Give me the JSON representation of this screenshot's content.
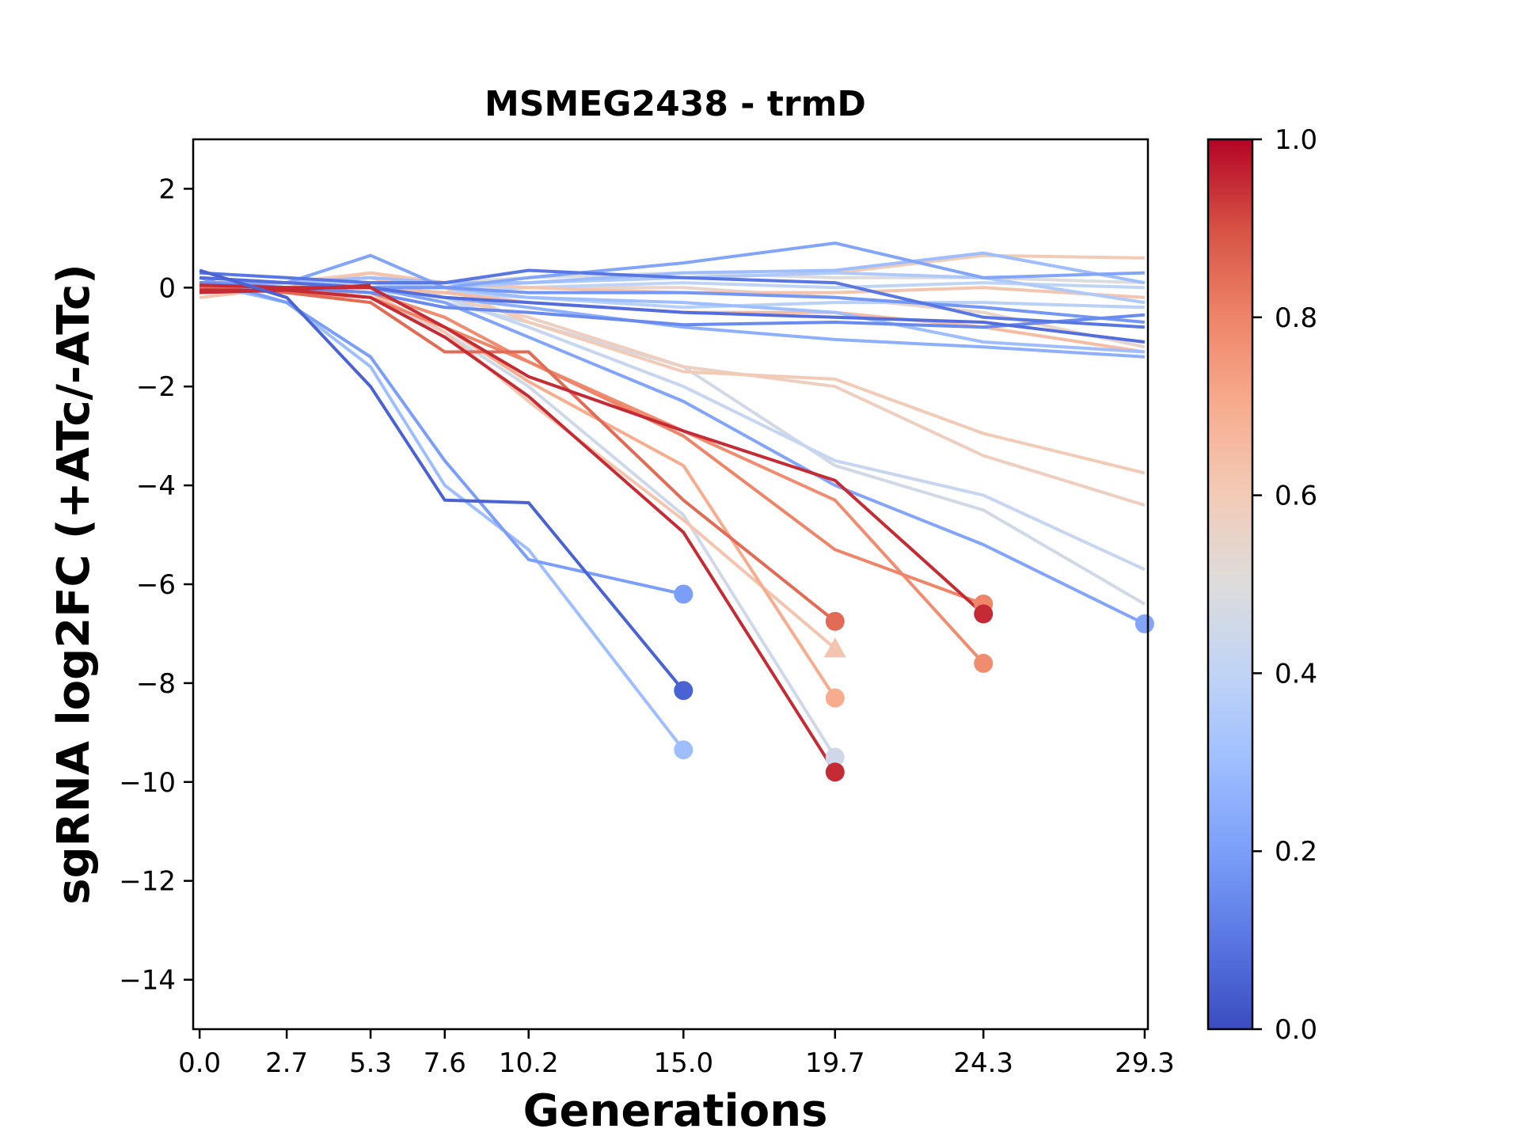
{
  "chart_data": {
    "type": "line",
    "title": "MSMEG2438 - trmD",
    "xlabel": "Generations",
    "ylabel": "sgRNA log2FC (+ATc/-ATc)",
    "x_ticks": [
      "0.0",
      "2.7",
      "5.3",
      "7.6",
      "10.2",
      "15.0",
      "19.7",
      "24.3",
      "29.3"
    ],
    "y_ticks": [
      "2",
      "0",
      "−2",
      "−4",
      "−6",
      "−8",
      "−10",
      "−12",
      "−14"
    ],
    "xlim": [
      -0.2,
      29.4
    ],
    "ylim": [
      -15,
      3
    ],
    "colorbar": {
      "ticks": [
        "0.0",
        "0.2",
        "0.4",
        "0.6",
        "0.8",
        "1.0"
      ],
      "range": [
        0,
        1
      ],
      "colormap": "coolwarm",
      "stops": [
        "#3b4cc0",
        "#5977e3",
        "#7b9ff9",
        "#9ebeff",
        "#c0d4f5",
        "#dddcdc",
        "#f2cbb7",
        "#f7ac8e",
        "#ee8468",
        "#d65244",
        "#b40426"
      ]
    },
    "series": [
      {
        "c": 0.05,
        "x": [
          0,
          2.7,
          5.3,
          7.6,
          10.2,
          15.0
        ],
        "y": [
          0.35,
          -0.2,
          -2.0,
          -4.3,
          -4.35,
          -8.15
        ],
        "end": "circle"
      },
      {
        "c": 0.2,
        "x": [
          0,
          2.7,
          5.3,
          7.6,
          10.2,
          15.0
        ],
        "y": [
          0.2,
          -0.3,
          -1.4,
          -3.5,
          -5.5,
          -6.2
        ],
        "end": "circle"
      },
      {
        "c": 0.3,
        "x": [
          0,
          2.7,
          5.3,
          7.6,
          10.2,
          15.0
        ],
        "y": [
          0.1,
          -0.3,
          -1.6,
          -4.0,
          -5.3,
          -9.35
        ],
        "end": "circle"
      },
      {
        "c": 0.95,
        "x": [
          0,
          2.7,
          5.3,
          7.6,
          10.2,
          15.0,
          19.7
        ],
        "y": [
          -0.05,
          -0.05,
          -0.2,
          -1.0,
          -2.2,
          -4.95,
          -9.8
        ],
        "end": "circle"
      },
      {
        "c": 0.45,
        "x": [
          0,
          2.7,
          5.3,
          7.6,
          10.2,
          15.0,
          19.7
        ],
        "y": [
          0.0,
          -0.1,
          -0.2,
          -0.9,
          -2.0,
          -4.6,
          -9.5
        ],
        "end": "circle"
      },
      {
        "c": 0.7,
        "x": [
          0,
          2.7,
          5.3,
          7.6,
          10.2,
          15.0,
          19.7
        ],
        "y": [
          0.1,
          -0.1,
          -0.2,
          -0.8,
          -1.9,
          -3.6,
          -8.3
        ],
        "end": "circle"
      },
      {
        "c": 0.85,
        "x": [
          0,
          2.7,
          5.3,
          7.6,
          10.2,
          15.0,
          19.7
        ],
        "y": [
          0.0,
          -0.1,
          -0.3,
          -1.3,
          -1.3,
          -4.3,
          -6.75
        ],
        "end": "circle"
      },
      {
        "c": 0.62,
        "x": [
          0,
          2.7,
          5.3,
          7.6,
          10.2,
          15.0,
          19.7
        ],
        "y": [
          0.1,
          0.0,
          -0.1,
          -0.9,
          -2.3,
          -4.7,
          -7.3
        ],
        "end": "triangle"
      },
      {
        "c": 0.95,
        "x": [
          0,
          2.7,
          5.3,
          7.6,
          10.2,
          15.0,
          19.7,
          24.3
        ],
        "y": [
          0.05,
          0.0,
          0.0,
          -0.8,
          -1.8,
          -2.9,
          -3.9,
          -6.6
        ],
        "end": "circle"
      },
      {
        "c": 0.8,
        "x": [
          0,
          2.7,
          5.3,
          7.6,
          10.2,
          15.0,
          19.7,
          24.3
        ],
        "y": [
          0.1,
          0.0,
          -0.2,
          -0.8,
          -1.5,
          -3.0,
          -5.3,
          -6.4
        ],
        "end": "circle"
      },
      {
        "c": 0.78,
        "x": [
          0,
          2.7,
          5.3,
          7.6,
          10.2,
          15.0,
          19.7,
          24.3
        ],
        "y": [
          0.1,
          0.0,
          -0.1,
          -0.6,
          -1.5,
          -2.9,
          -4.3,
          -7.6
        ],
        "end": "circle"
      },
      {
        "c": 0.22,
        "x": [
          0,
          2.7,
          5.3,
          7.6,
          10.2,
          15.0,
          19.7,
          24.3,
          29.3
        ],
        "y": [
          0.1,
          0.1,
          0.0,
          -0.3,
          -1.0,
          -2.3,
          -4.0,
          -5.2,
          -6.8
        ],
        "end": "circle"
      },
      {
        "c": 0.42,
        "x": [
          0,
          2.7,
          5.3,
          7.6,
          10.2,
          15.0,
          19.7,
          24.3,
          29.3
        ],
        "y": [
          0.1,
          0.1,
          0.1,
          -0.2,
          -0.8,
          -2.0,
          -3.5,
          -4.2,
          -5.7
        ],
        "end": "none"
      },
      {
        "c": 0.46,
        "x": [
          0,
          2.7,
          5.3,
          7.6,
          10.2,
          15.0,
          19.7,
          24.3,
          29.3
        ],
        "y": [
          0.1,
          0.1,
          0.0,
          -0.3,
          -0.7,
          -1.6,
          -3.6,
          -4.5,
          -6.4
        ],
        "end": "none"
      },
      {
        "c": 0.6,
        "x": [
          0,
          2.7,
          5.3,
          7.6,
          10.2,
          15.0,
          19.7,
          24.3,
          29.3
        ],
        "y": [
          0.1,
          0.1,
          0.3,
          0.0,
          -0.7,
          -1.7,
          -1.85,
          -2.95,
          -3.75
        ],
        "end": "none"
      },
      {
        "c": 0.58,
        "x": [
          0,
          2.7,
          5.3,
          7.6,
          10.2,
          15.0,
          19.7,
          24.3,
          29.3
        ],
        "y": [
          0.1,
          0.1,
          0.2,
          -0.2,
          -0.6,
          -1.6,
          -2.0,
          -3.4,
          -4.4
        ],
        "end": "none"
      },
      {
        "c": 0.22,
        "x": [
          0,
          2.7,
          5.3,
          7.6,
          10.2,
          15.0,
          19.7,
          24.3,
          29.3
        ],
        "y": [
          0.1,
          0.1,
          0.65,
          0.0,
          0.2,
          0.5,
          0.9,
          0.2,
          0.3
        ],
        "end": "none"
      },
      {
        "c": 0.1,
        "x": [
          0,
          2.7,
          5.3,
          7.6,
          10.2,
          15.0,
          19.7,
          24.3,
          29.3
        ],
        "y": [
          0.3,
          0.2,
          0.1,
          0.1,
          0.35,
          0.2,
          0.1,
          -0.6,
          -0.8
        ],
        "end": "none"
      },
      {
        "c": 0.08,
        "x": [
          0,
          2.7,
          5.3,
          7.6,
          10.2,
          15.0,
          19.7,
          24.3,
          29.3
        ],
        "y": [
          0.2,
          0.1,
          0.0,
          -0.2,
          -0.3,
          -0.5,
          -0.6,
          -0.7,
          -1.1
        ],
        "end": "none"
      },
      {
        "c": 0.15,
        "x": [
          0,
          2.7,
          5.3,
          7.6,
          10.2,
          15.0,
          19.7,
          24.3,
          29.3
        ],
        "y": [
          0.1,
          0.0,
          -0.1,
          -0.4,
          -0.5,
          -0.75,
          -0.7,
          -0.8,
          -0.55
        ],
        "end": "none"
      },
      {
        "c": 0.25,
        "x": [
          0,
          2.7,
          5.3,
          7.6,
          10.2,
          15.0,
          19.7,
          24.3,
          29.3
        ],
        "y": [
          0.0,
          0.0,
          0.0,
          -0.2,
          -0.4,
          -0.8,
          -1.05,
          -1.2,
          -1.4
        ],
        "end": "none"
      },
      {
        "c": 0.3,
        "x": [
          0,
          2.7,
          5.3,
          7.6,
          10.2,
          15.0,
          19.7,
          24.3,
          29.3
        ],
        "y": [
          0.2,
          0.1,
          0.0,
          0.0,
          -0.2,
          -0.3,
          -0.5,
          -1.1,
          -1.3
        ],
        "end": "none"
      },
      {
        "c": 0.3,
        "x": [
          0,
          2.7,
          5.3,
          7.6,
          10.2,
          15.0,
          19.7,
          24.3,
          29.3
        ],
        "y": [
          0.1,
          0.1,
          0.2,
          0.1,
          0.1,
          0.3,
          0.35,
          0.7,
          0.1
        ],
        "end": "none"
      },
      {
        "c": 0.35,
        "x": [
          0,
          2.7,
          5.3,
          7.6,
          10.2,
          15.0,
          19.7,
          24.3,
          29.3
        ],
        "y": [
          0.1,
          0.1,
          0.1,
          0.0,
          0.1,
          0.2,
          0.3,
          0.2,
          -0.3
        ],
        "end": "none"
      },
      {
        "c": 0.4,
        "x": [
          0,
          2.7,
          5.3,
          7.6,
          10.2,
          15.0,
          19.7,
          24.3,
          29.3
        ],
        "y": [
          0.0,
          0.0,
          -0.1,
          -0.1,
          0.0,
          0.1,
          0.0,
          0.1,
          0.0
        ],
        "end": "none"
      },
      {
        "c": 0.5,
        "x": [
          0,
          2.7,
          5.3,
          7.6,
          10.2,
          15.0,
          19.7,
          24.3,
          29.3
        ],
        "y": [
          0.0,
          0.1,
          0.1,
          0.1,
          0.2,
          0.3,
          0.2,
          0.2,
          0.1
        ],
        "end": "none"
      },
      {
        "c": 0.55,
        "x": [
          0,
          2.7,
          5.3,
          7.6,
          10.2,
          15.0,
          19.7,
          24.3,
          29.3
        ],
        "y": [
          -0.1,
          0.0,
          0.0,
          0.0,
          0.0,
          0.0,
          -0.2,
          -0.5,
          -1.2
        ],
        "end": "none"
      },
      {
        "c": 0.6,
        "x": [
          0,
          2.7,
          5.3,
          7.6,
          10.2,
          15.0,
          19.7,
          24.3,
          29.3
        ],
        "y": [
          0.1,
          0.1,
          0.2,
          0.0,
          0.1,
          0.2,
          0.3,
          0.65,
          0.6
        ],
        "end": "none"
      },
      {
        "c": 0.62,
        "x": [
          0,
          2.7,
          5.3,
          7.6,
          10.2,
          15.0,
          19.7,
          24.3,
          29.3
        ],
        "y": [
          -0.2,
          0.0,
          0.3,
          0.1,
          0.0,
          -0.1,
          -0.1,
          0.0,
          -0.2
        ],
        "end": "none"
      },
      {
        "c": 0.65,
        "x": [
          0,
          2.7,
          5.3,
          7.6,
          10.2,
          15.0,
          19.7,
          24.3,
          29.3
        ],
        "y": [
          0.0,
          0.0,
          0.0,
          -0.1,
          -0.3,
          -0.5,
          -0.5,
          -0.8,
          -1.3
        ],
        "end": "none"
      },
      {
        "c": 0.18,
        "x": [
          0,
          2.7,
          5.3,
          7.6,
          10.2,
          15.0,
          19.7,
          24.3,
          29.3
        ],
        "y": [
          0.1,
          0.0,
          0.0,
          0.0,
          -0.1,
          -0.1,
          -0.2,
          -0.4,
          -0.7
        ],
        "end": "none"
      },
      {
        "c": 0.38,
        "x": [
          0,
          2.7,
          5.3,
          7.6,
          10.2,
          15.0,
          19.7,
          24.3,
          29.3
        ],
        "y": [
          0.1,
          0.0,
          0.0,
          -0.1,
          -0.2,
          -0.4,
          -0.3,
          -0.3,
          -0.4
        ],
        "end": "none"
      },
      {
        "c": 0.95,
        "x": [
          0,
          2.7,
          5.3
        ],
        "y": [
          -0.1,
          -0.05,
          0.05
        ],
        "end": "none"
      }
    ]
  }
}
